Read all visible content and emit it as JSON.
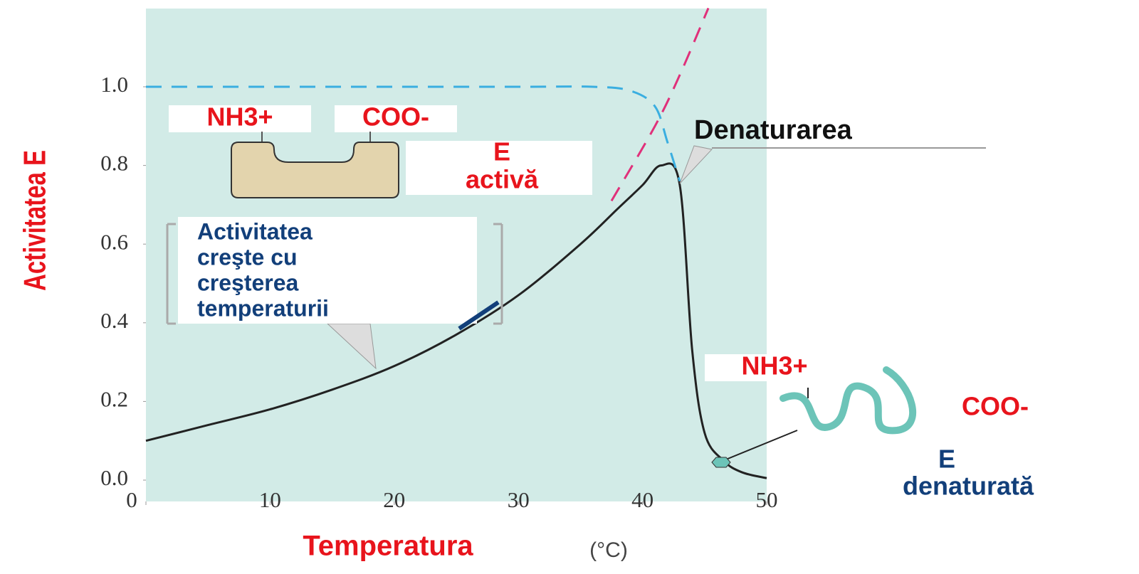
{
  "chart_data": {
    "type": "line",
    "x_label": "Temperatura",
    "x_unit": "(°C)",
    "y_label": "Activitatea E",
    "xlim": [
      0,
      50
    ],
    "ylim": [
      -0.05,
      1.2
    ],
    "xticks": [
      0,
      10,
      20,
      30,
      40,
      50
    ],
    "yticks": [
      {
        "value": 0,
        "label": "0.0"
      },
      0.2,
      0.4,
      0.6,
      0.8,
      {
        "value": 1,
        "label": "1.0"
      }
    ],
    "series": [
      {
        "color": "#222222",
        "dashed": false,
        "x": [
          0,
          5,
          10,
          15,
          20,
          25,
          30,
          35,
          38,
          40,
          41.5,
          43,
          44,
          45,
          46.5,
          48,
          50
        ],
        "values": [
          0.1,
          0.14,
          0.18,
          0.23,
          0.29,
          0.37,
          0.47,
          0.6,
          0.69,
          0.75,
          0.8,
          0.75,
          0.33,
          0.12,
          0.05,
          0.02,
          0.005
        ]
      },
      {
        "color": "#3aaee0",
        "dashed": true,
        "x": [
          0,
          10,
          20,
          30,
          36,
          39,
          41,
          42,
          43
        ],
        "values": [
          1,
          1,
          1,
          1,
          1,
          0.99,
          0.95,
          0.86,
          0.76
        ]
      },
      {
        "color": "#e0307a",
        "dashed": true,
        "x": [
          37.5,
          41,
          43,
          45.3
        ],
        "values": [
          0.71,
          0.9,
          1.03,
          1.2
        ]
      }
    ],
    "annotations": {
      "active_nh3": "NH3+",
      "active_coo": "COO-",
      "active_e": "E",
      "active_word": "activă",
      "denaturation": "Denaturarea",
      "rise_text": [
        "Activitatea",
        "creşte cu",
        "creşterea",
        "temperaturii"
      ],
      "denatured_nh3": "NH3+",
      "denatured_coo": "COO-",
      "denatured_e": "E",
      "denatured_word": "denaturată"
    }
  }
}
